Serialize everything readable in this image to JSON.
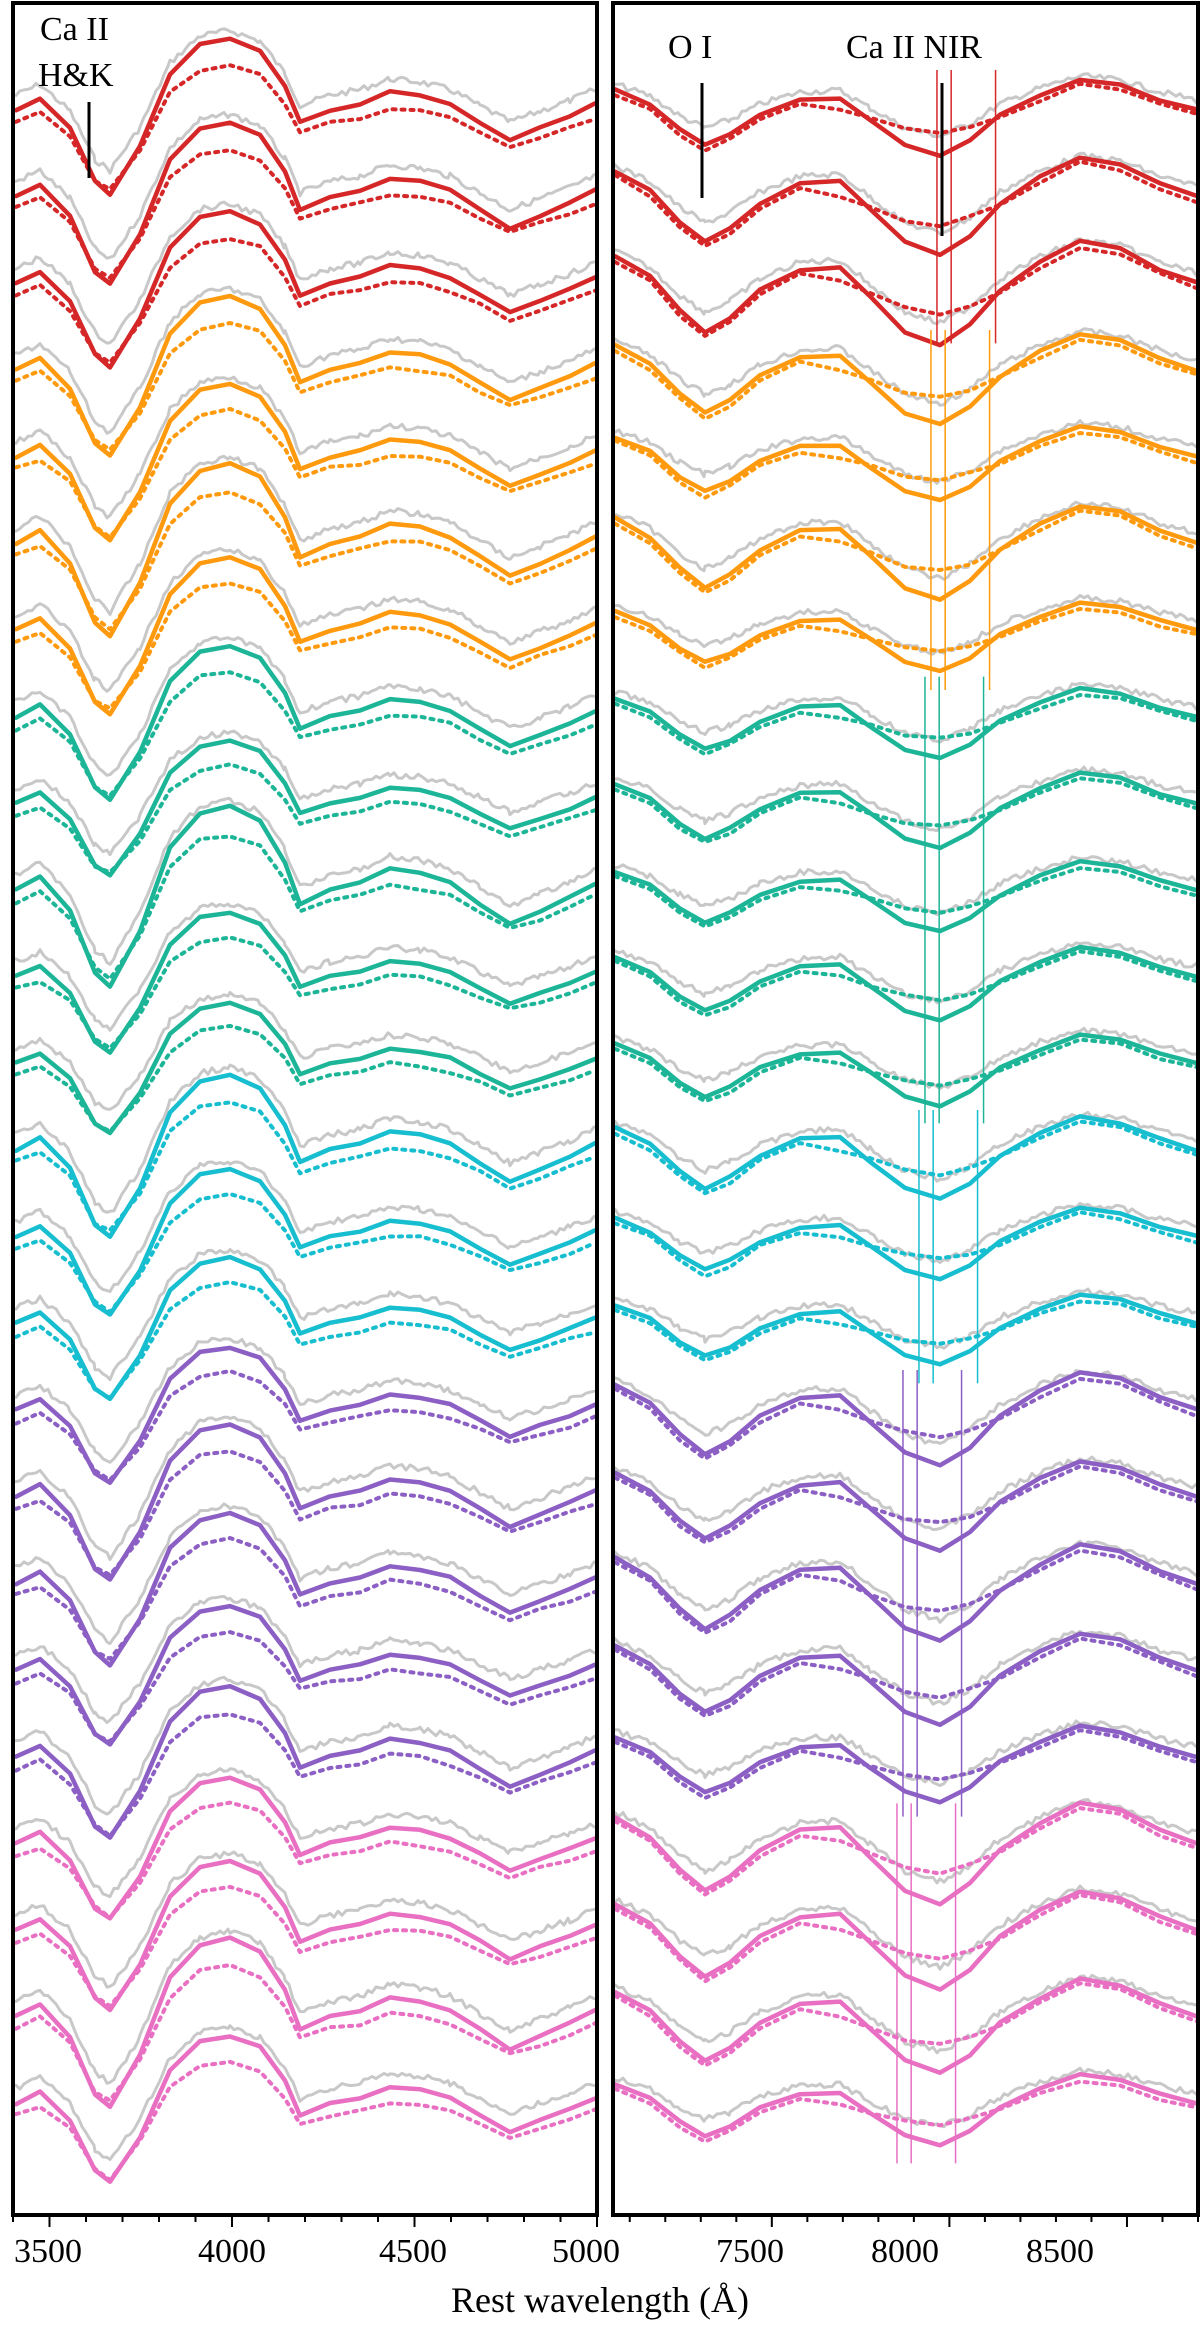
{
  "chart_data": {
    "type": "line",
    "title": "",
    "xlabel": "Rest wavelength (Å)",
    "ylabel": "",
    "grid": false,
    "legend": "none",
    "panels": [
      {
        "name": "left",
        "xlim": [
          3400,
          5000
        ],
        "xticks": [
          3500,
          4000,
          4500,
          5000
        ],
        "annotations": [
          {
            "text_line1": "Ca II",
            "text_line2": "H&K",
            "x": 3610
          }
        ]
      },
      {
        "name": "right",
        "xlim": [
          7050,
          8700
        ],
        "xticks": [
          7500,
          8000,
          8500
        ],
        "annotations": [
          {
            "text": "O I",
            "x": 7320
          },
          {
            "text": "Ca II NIR",
            "x": 8000
          }
        ],
        "ca_nir_markers": [
          7965,
          8005,
          8130
        ]
      }
    ],
    "line_styles": {
      "model_solid": "solid colored line (model spectrum)",
      "model_dotted": "dotted colored line (model without component)",
      "observed": "grey noisy line (observed spectrum)"
    },
    "groups": [
      {
        "name": "group-1",
        "color": "#d62728",
        "n_spectra": 3
      },
      {
        "name": "group-2",
        "color": "#ff9a0e",
        "n_spectra": 4
      },
      {
        "name": "group-3",
        "color": "#1db597",
        "n_spectra": 5
      },
      {
        "name": "group-4",
        "color": "#17becf",
        "n_spectra": 3
      },
      {
        "name": "group-5",
        "color": "#8c5fc4",
        "n_spectra": 5
      },
      {
        "name": "group-6",
        "color": "#e86fc2",
        "n_spectra": 4
      }
    ],
    "observed_color": "#c8c8c8"
  },
  "labels": {
    "ticks_left": [
      "3500",
      "4000",
      "4500",
      "5000"
    ],
    "ticks_right": [
      "7500",
      "8000",
      "8500"
    ],
    "xlabel": "Rest wavelength (Å)",
    "ann_hk_1": "Ca II",
    "ann_hk_2": "H&K",
    "ann_oi": "O I",
    "ann_canir": "Ca II NIR"
  }
}
